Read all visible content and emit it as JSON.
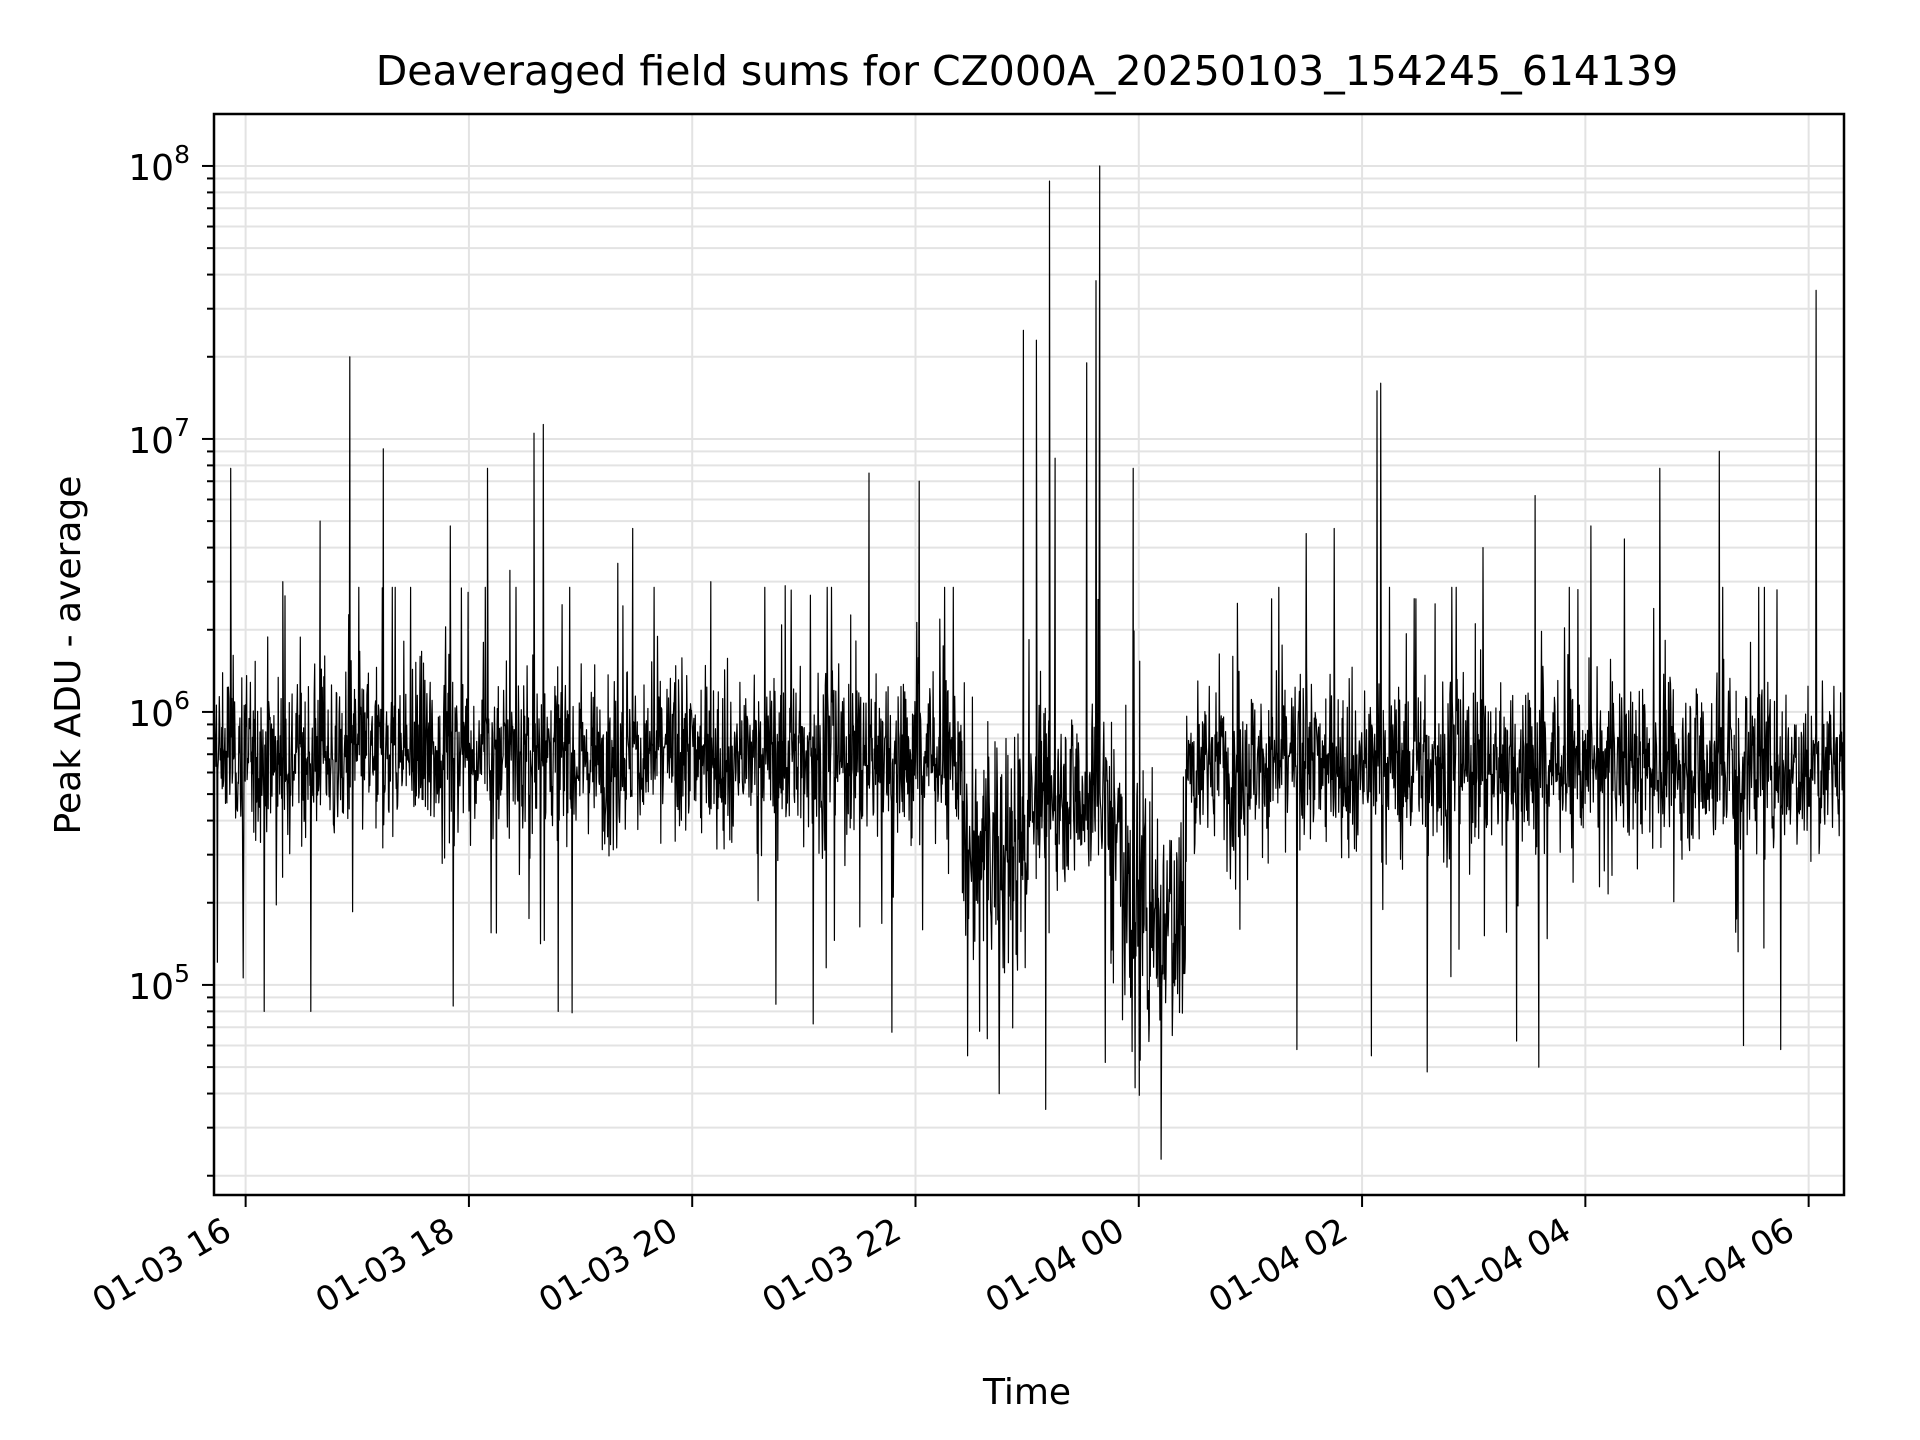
{
  "chart_data": {
    "type": "line",
    "title": "Deaveraged field sums for CZ000A_20250103_154245_614139",
    "xlabel": "Time",
    "ylabel": "Peak ADU - average",
    "yscale": "log",
    "ylim": [
      17000,
      155000000
    ],
    "xlim": [
      "2025-01-03 15:43",
      "2025-01-04 06:19"
    ],
    "grid": true,
    "line_color": "#000000",
    "xticks": [
      {
        "t": "2025-01-03 16:00",
        "label": "01-03 16"
      },
      {
        "t": "2025-01-03 18:00",
        "label": "01-03 18"
      },
      {
        "t": "2025-01-03 20:00",
        "label": "01-03 20"
      },
      {
        "t": "2025-01-03 22:00",
        "label": "01-03 22"
      },
      {
        "t": "2025-01-04 00:00",
        "label": "01-04 00"
      },
      {
        "t": "2025-01-04 02:00",
        "label": "01-04 02"
      },
      {
        "t": "2025-01-04 04:00",
        "label": "01-04 04"
      },
      {
        "t": "2025-01-04 06:00",
        "label": "01-04 06"
      }
    ],
    "yticks": [
      {
        "value": 100000,
        "base": "10",
        "exp": "5"
      },
      {
        "value": 1000000,
        "base": "10",
        "exp": "6"
      },
      {
        "value": 10000000,
        "base": "10",
        "exp": "7"
      },
      {
        "value": 100000000,
        "base": "10",
        "exp": "8"
      }
    ],
    "peaks": [
      {
        "t": "2025-01-03 15:52",
        "v": 7800000
      },
      {
        "t": "2025-01-03 16:20",
        "v": 3000000
      },
      {
        "t": "2025-01-03 16:40",
        "v": 5000000
      },
      {
        "t": "2025-01-03 16:56",
        "v": 20000000
      },
      {
        "t": "2025-01-03 17:14",
        "v": 9200000
      },
      {
        "t": "2025-01-03 17:50",
        "v": 4800000
      },
      {
        "t": "2025-01-03 18:10",
        "v": 7800000
      },
      {
        "t": "2025-01-03 18:22",
        "v": 3300000
      },
      {
        "t": "2025-01-03 18:35",
        "v": 10500000
      },
      {
        "t": "2025-01-03 18:40",
        "v": 11300000
      },
      {
        "t": "2025-01-03 19:20",
        "v": 3500000
      },
      {
        "t": "2025-01-03 19:28",
        "v": 4700000
      },
      {
        "t": "2025-01-03 20:10",
        "v": 3000000
      },
      {
        "t": "2025-01-03 20:50",
        "v": 2900000
      },
      {
        "t": "2025-01-03 21:35",
        "v": 7500000
      },
      {
        "t": "2025-01-03 22:02",
        "v": 7000000
      },
      {
        "t": "2025-01-03 22:58",
        "v": 25000000
      },
      {
        "t": "2025-01-03 23:05",
        "v": 23000000
      },
      {
        "t": "2025-01-03 23:12",
        "v": 88000000
      },
      {
        "t": "2025-01-03 23:15",
        "v": 8500000
      },
      {
        "t": "2025-01-03 23:32",
        "v": 19000000
      },
      {
        "t": "2025-01-03 23:37",
        "v": 38000000
      },
      {
        "t": "2025-01-03 23:39",
        "v": 100000000
      },
      {
        "t": "2025-01-03 23:57",
        "v": 7800000
      },
      {
        "t": "2025-01-04 00:53",
        "v": 2500000
      },
      {
        "t": "2025-01-04 01:30",
        "v": 4500000
      },
      {
        "t": "2025-01-04 01:45",
        "v": 4700000
      },
      {
        "t": "2025-01-04 02:08",
        "v": 15000000
      },
      {
        "t": "2025-01-04 02:10",
        "v": 16000000
      },
      {
        "t": "2025-01-04 02:28",
        "v": 2600000
      },
      {
        "t": "2025-01-04 03:05",
        "v": 4000000
      },
      {
        "t": "2025-01-04 03:33",
        "v": 6200000
      },
      {
        "t": "2025-01-04 04:03",
        "v": 4800000
      },
      {
        "t": "2025-01-04 04:21",
        "v": 4300000
      },
      {
        "t": "2025-01-04 04:40",
        "v": 7800000
      },
      {
        "t": "2025-01-04 05:12",
        "v": 9000000
      },
      {
        "t": "2025-01-04 05:43",
        "v": 2800000
      },
      {
        "t": "2025-01-04 06:04",
        "v": 35000000
      }
    ],
    "dips": [
      {
        "t": "2025-01-03 16:10",
        "v": 80000
      },
      {
        "t": "2025-01-03 16:35",
        "v": 80000
      },
      {
        "t": "2025-01-03 18:48",
        "v": 80000
      },
      {
        "t": "2025-01-03 20:45",
        "v": 85000
      },
      {
        "t": "2025-01-03 21:05",
        "v": 72000
      },
      {
        "t": "2025-01-03 22:28",
        "v": 55000
      },
      {
        "t": "2025-01-03 22:45",
        "v": 40000
      },
      {
        "t": "2025-01-03 23:10",
        "v": 35000
      },
      {
        "t": "2025-01-03 23:42",
        "v": 52000
      },
      {
        "t": "2025-01-03 23:58",
        "v": 42000
      },
      {
        "t": "2025-01-04 00:12",
        "v": 23000
      },
      {
        "t": "2025-01-04 01:25",
        "v": 58000
      },
      {
        "t": "2025-01-04 02:05",
        "v": 55000
      },
      {
        "t": "2025-01-04 02:35",
        "v": 48000
      },
      {
        "t": "2025-01-04 03:35",
        "v": 50000
      },
      {
        "t": "2025-01-04 05:25",
        "v": 60000
      },
      {
        "t": "2025-01-04 05:45",
        "v": 58000
      }
    ],
    "baseline_segments": [
      {
        "from": "2025-01-03 15:43",
        "to": "2025-01-03 22:25",
        "median": 700000
      },
      {
        "from": "2025-01-03 22:25",
        "to": "2025-01-03 23:00",
        "median": 300000
      },
      {
        "from": "2025-01-03 23:00",
        "to": "2025-01-03 23:50",
        "median": 500000
      },
      {
        "from": "2025-01-03 23:50",
        "to": "2025-01-04 00:25",
        "median": 200000
      },
      {
        "from": "2025-01-04 00:25",
        "to": "2025-01-04 06:19",
        "median": 650000
      }
    ]
  }
}
